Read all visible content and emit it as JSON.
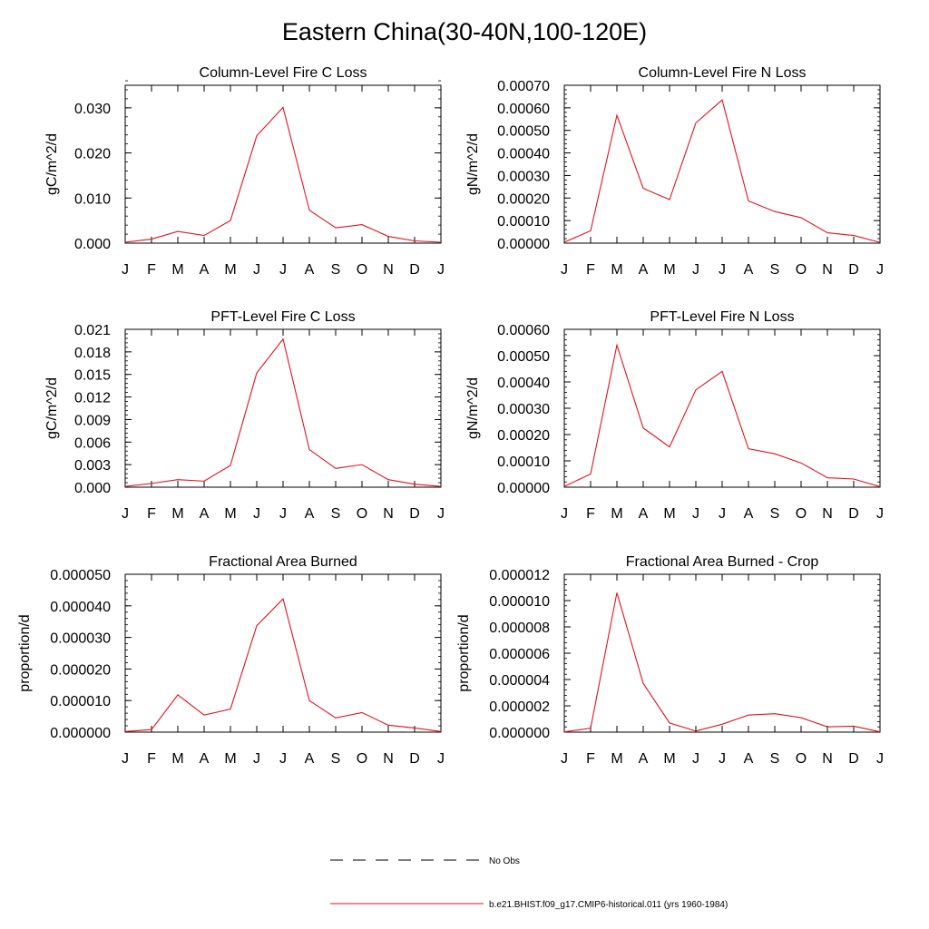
{
  "title": "Eastern China(30-40N,100-120E)",
  "colors": {
    "model_line": "#e0141e",
    "axis": "#000000"
  },
  "chart_data": [
    {
      "type": "line",
      "title": "Column-Level Fire C Loss",
      "ylabel": "gC/m^2/d",
      "categories": [
        "J",
        "F",
        "M",
        "A",
        "M",
        "J",
        "J",
        "A",
        "S",
        "O",
        "N",
        "D",
        "J"
      ],
      "ylim": [
        0,
        0.035
      ],
      "yticks": [
        0.0,
        0.01,
        0.02,
        0.03
      ],
      "ytick_labels": [
        "0.000",
        "0.010",
        "0.020",
        "0.030"
      ],
      "yminor_step": 0.002,
      "series": [
        {
          "name": "b.e21.BHIST.f09_g17.CMIP6-historical.011 (yrs 1960-1984)",
          "values": [
            0.0002,
            0.0009,
            0.0026,
            0.0017,
            0.005,
            0.0238,
            0.0301,
            0.0073,
            0.0034,
            0.0041,
            0.0015,
            0.0005,
            0.0002
          ]
        }
      ]
    },
    {
      "type": "line",
      "title": "Column-Level Fire N Loss",
      "ylabel": "gN/m^2/d",
      "categories": [
        "J",
        "F",
        "M",
        "A",
        "M",
        "J",
        "J",
        "A",
        "S",
        "O",
        "N",
        "D",
        "J"
      ],
      "ylim": [
        0,
        0.0007
      ],
      "yticks": [
        0,
        0.0001,
        0.0002,
        0.0003,
        0.0004,
        0.0005,
        0.0006,
        0.0007
      ],
      "ytick_labels": [
        "0.00000",
        "0.00010",
        "0.00020",
        "0.00030",
        "0.00040",
        "0.00050",
        "0.00060",
        "0.00070"
      ],
      "yminor_step": 2e-05,
      "series": [
        {
          "name": "b.e21.BHIST.f09_g17.CMIP6-historical.011 (yrs 1960-1984)",
          "values": [
            4e-06,
            5.5e-05,
            0.000567,
            0.000243,
            0.000193,
            0.000533,
            0.000635,
            0.000187,
            0.00014,
            0.000113,
            4.6e-05,
            3.4e-05,
            3e-06
          ]
        }
      ]
    },
    {
      "type": "line",
      "title": "PFT-Level Fire C Loss",
      "ylabel": "gC/m^2/d",
      "categories": [
        "J",
        "F",
        "M",
        "A",
        "M",
        "J",
        "J",
        "A",
        "S",
        "O",
        "N",
        "D",
        "J"
      ],
      "ylim": [
        0,
        0.021
      ],
      "yticks": [
        0,
        0.003,
        0.006,
        0.009,
        0.012,
        0.015,
        0.018,
        0.021
      ],
      "ytick_labels": [
        "0.000",
        "0.003",
        "0.006",
        "0.009",
        "0.012",
        "0.015",
        "0.018",
        "0.021"
      ],
      "yminor_step": 0.0006,
      "series": [
        {
          "name": "b.e21.BHIST.f09_g17.CMIP6-historical.011 (yrs 1960-1984)",
          "values": [
            0.0001,
            0.0005,
            0.001,
            0.0008,
            0.0029,
            0.0152,
            0.0197,
            0.005,
            0.0025,
            0.003,
            0.001,
            0.0004,
            0.0001
          ]
        }
      ]
    },
    {
      "type": "line",
      "title": "PFT-Level Fire N Loss",
      "ylabel": "gN/m^2/d",
      "categories": [
        "J",
        "F",
        "M",
        "A",
        "M",
        "J",
        "J",
        "A",
        "S",
        "O",
        "N",
        "D",
        "J"
      ],
      "ylim": [
        0,
        0.0006
      ],
      "yticks": [
        0,
        0.0001,
        0.0002,
        0.0003,
        0.0004,
        0.0005,
        0.0006
      ],
      "ytick_labels": [
        "0.00000",
        "0.00010",
        "0.00020",
        "0.00030",
        "0.00040",
        "0.00050",
        "0.00060"
      ],
      "yminor_step": 2e-05,
      "series": [
        {
          "name": "b.e21.BHIST.f09_g17.CMIP6-historical.011 (yrs 1960-1984)",
          "values": [
            3e-06,
            5e-05,
            0.00054,
            0.000225,
            0.000153,
            0.00037,
            0.00044,
            0.000146,
            0.000127,
            9.2e-05,
            3.6e-05,
            3.1e-05,
            2e-06
          ]
        }
      ]
    },
    {
      "type": "line",
      "title": "Fractional Area Burned",
      "ylabel": "proportion/d",
      "categories": [
        "J",
        "F",
        "M",
        "A",
        "M",
        "J",
        "J",
        "A",
        "S",
        "O",
        "N",
        "D",
        "J"
      ],
      "ylim": [
        0,
        5e-05
      ],
      "yticks": [
        0,
        1e-05,
        2e-05,
        3e-05,
        4e-05,
        5e-05
      ],
      "ytick_labels": [
        "0.000000",
        "0.000010",
        "0.000020",
        "0.000030",
        "0.000040",
        "0.000050"
      ],
      "yminor_step": 2e-06,
      "series": [
        {
          "name": "b.e21.BHIST.f09_g17.CMIP6-historical.011 (yrs 1960-1984)",
          "values": [
            2e-07,
            8e-07,
            1.18e-05,
            5.4e-06,
            7.3e-06,
            3.37e-05,
            4.22e-05,
            1e-05,
            4.5e-06,
            6.2e-06,
            2.2e-06,
            1.3e-06,
            2e-07
          ]
        }
      ]
    },
    {
      "type": "line",
      "title": "Fractional Area Burned - Crop",
      "ylabel": "proportion/d",
      "categories": [
        "J",
        "F",
        "M",
        "A",
        "M",
        "J",
        "J",
        "A",
        "S",
        "O",
        "N",
        "D",
        "J"
      ],
      "ylim": [
        0,
        1.2e-05
      ],
      "yticks": [
        0,
        2e-06,
        4e-06,
        6e-06,
        8e-06,
        1e-05,
        1.2e-05
      ],
      "ytick_labels": [
        "0.000000",
        "0.000002",
        "0.000004",
        "0.000006",
        "0.000008",
        "0.000010",
        "0.000012"
      ],
      "yminor_step": 4e-07,
      "series": [
        {
          "name": "b.e21.BHIST.f09_g17.CMIP6-historical.011 (yrs 1960-1984)",
          "values": [
            2e-08,
            3e-07,
            1.06e-05,
            3.7e-06,
            7e-07,
            8e-08,
            6e-07,
            1.3e-06,
            1.4e-06,
            1.1e-06,
            4e-07,
            4.5e-07,
            2e-08
          ]
        }
      ]
    }
  ],
  "legend": [
    {
      "label": "No Obs",
      "style": "dashed",
      "color": "#000000"
    },
    {
      "label": "b.e21.BHIST.f09_g17.CMIP6-historical.011 (yrs 1960-1984)",
      "style": "solid",
      "color": "#e0141e"
    }
  ]
}
